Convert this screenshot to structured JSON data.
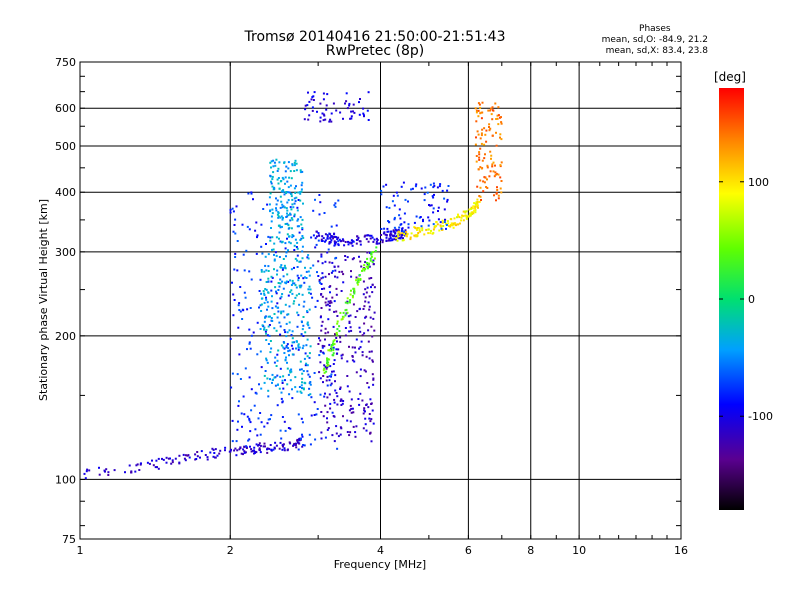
{
  "chart_data": {
    "type": "scatter",
    "title": "Tromsø 20140416 21:50:00-21:51:43",
    "subtitle": "RwPretec (8p)",
    "xlabel": "Frequency [MHz]",
    "ylabel": "Stationary phase Virtual Height [km]",
    "x_scale": "log",
    "y_scale": "log",
    "xlim": [
      1,
      16
    ],
    "ylim": [
      75,
      750
    ],
    "xticks": [
      1,
      2,
      4,
      6,
      8,
      10,
      16
    ],
    "xtick_labels": [
      "1",
      "2",
      "4",
      "6",
      "8",
      "10",
      "16"
    ],
    "yticks": [
      75,
      100,
      200,
      300,
      400,
      500,
      600,
      750
    ],
    "ytick_labels": [
      "75",
      "100",
      "200",
      "300",
      "400",
      "500",
      "600",
      "750"
    ],
    "grid": true,
    "stats": {
      "heading": "Phases",
      "line1": "mean, sd,O: -84.9, 21.2",
      "line2": "mean, sd,X: 83.4, 23.8"
    },
    "colorbar": {
      "label": "[deg]",
      "range": [
        -180,
        180
      ],
      "ticks": [
        100,
        0,
        -100
      ],
      "tick_labels": [
        "100",
        "0",
        "-100"
      ],
      "colormap": "rainbow (black-purple-blue-cyan-green-yellow-red)"
    },
    "point_color_value": "phase [deg]",
    "series": [
      {
        "x_range": [
          1.0,
          2.8
        ],
        "y_range": [
          102,
          120
        ],
        "phase_deg": -110,
        "points": 160,
        "trace": [
          [
            1.0,
            102
          ],
          [
            1.3,
            106
          ],
          [
            1.6,
            110
          ],
          [
            1.9,
            114
          ],
          [
            2.2,
            116
          ],
          [
            2.5,
            117
          ],
          [
            2.8,
            120
          ]
        ]
      },
      {
        "x_range": [
          2.0,
          3.3
        ],
        "y_range": [
          115,
          400
        ],
        "phase_deg": -80,
        "points": 300
      },
      {
        "x_range": [
          2.3,
          2.9
        ],
        "y_range": [
          150,
          300
        ],
        "phase_deg": -40,
        "points": 260
      },
      {
        "x_range": [
          2.4,
          2.8
        ],
        "y_range": [
          300,
          470
        ],
        "phase_deg": -40,
        "points": 180
      },
      {
        "x_range": [
          3.0,
          3.9
        ],
        "y_range": [
          120,
          300
        ],
        "phase_deg": -115,
        "points": 280
      },
      {
        "x_range": [
          3.1,
          3.9
        ],
        "y_range": [
          170,
          300
        ],
        "phase_deg": 40,
        "points": 100,
        "trace": [
          [
            3.1,
            170
          ],
          [
            3.3,
            210
          ],
          [
            3.6,
            260
          ],
          [
            3.9,
            300
          ]
        ]
      },
      {
        "x_range": [
          3.0,
          4.5
        ],
        "y_range": [
          310,
          330
        ],
        "phase_deg": -105,
        "points": 150,
        "trace": [
          [
            3.0,
            325
          ],
          [
            3.4,
            315
          ],
          [
            4.0,
            320
          ],
          [
            4.5,
            330
          ]
        ]
      },
      {
        "x_range": [
          4.3,
          6.3
        ],
        "y_range": [
          320,
          380
        ],
        "phase_deg": 95,
        "points": 140,
        "trace": [
          [
            4.3,
            322
          ],
          [
            5.0,
            335
          ],
          [
            5.6,
            345
          ],
          [
            6.0,
            360
          ],
          [
            6.3,
            380
          ]
        ]
      },
      {
        "x_range": [
          4.0,
          5.5
        ],
        "y_range": [
          330,
          420
        ],
        "phase_deg": -80,
        "points": 90
      },
      {
        "x_range": [
          6.2,
          7.0
        ],
        "y_range": [
          380,
          620
        ],
        "phase_deg": 140,
        "points": 120
      },
      {
        "x_range": [
          2.8,
          3.8
        ],
        "y_range": [
          560,
          650
        ],
        "phase_deg": -100,
        "points": 60
      }
    ]
  }
}
